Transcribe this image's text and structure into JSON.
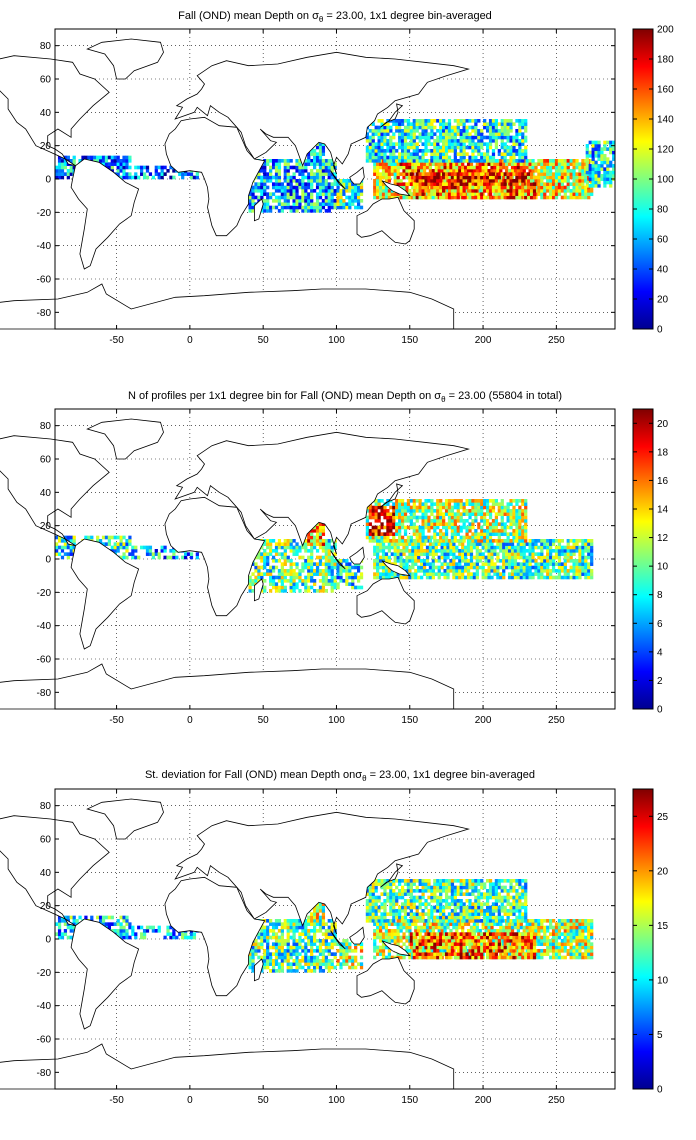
{
  "chart_data": [
    {
      "type": "heatmap",
      "title_parts": {
        "pre": "Fall (OND) mean Depth on ",
        "sym": "σ",
        "sub": "θ",
        "post": " = 23.00, 1x1 degree bin-averaged"
      },
      "x_ticks": [
        "-50",
        "0",
        "50",
        "100",
        "150",
        "200",
        "250"
      ],
      "y_ticks": [
        "80",
        "60",
        "40",
        "20",
        "0",
        "-20",
        "-40",
        "-60",
        "-80"
      ],
      "xlim": [
        -92,
        290
      ],
      "ylim": [
        -90,
        90
      ],
      "colorbar": {
        "range": [
          0,
          200
        ],
        "ticks": [
          "200",
          "180",
          "160",
          "140",
          "120",
          "100",
          "80",
          "60",
          "40",
          "20",
          "0"
        ]
      },
      "grid": true
    },
    {
      "type": "heatmap",
      "title_parts": {
        "pre": "N of profiles per 1x1 degree bin for Fall (OND) mean Depth on ",
        "sym": "σ",
        "sub": "θ",
        "post": " = 23.00 (55804 in total)"
      },
      "x_ticks": [
        "-50",
        "0",
        "50",
        "100",
        "150",
        "200",
        "250"
      ],
      "y_ticks": [
        "80",
        "60",
        "40",
        "20",
        "0",
        "-20",
        "-40",
        "-60",
        "-80"
      ],
      "xlim": [
        -92,
        290
      ],
      "ylim": [
        -90,
        90
      ],
      "colorbar": {
        "range": [
          0,
          21
        ],
        "ticks": [
          "20",
          "18",
          "16",
          "14",
          "12",
          "10",
          "8",
          "6",
          "4",
          "2",
          "0"
        ]
      },
      "grid": true
    },
    {
      "type": "heatmap",
      "title_parts": {
        "pre": "St. deviation for Fall (OND) mean Depth on",
        "sym": "σ",
        "sub": "θ",
        "post": " = 23.00, 1x1 degree bin-averaged"
      },
      "x_ticks": [
        "-50",
        "0",
        "50",
        "100",
        "150",
        "200",
        "250"
      ],
      "y_ticks": [
        "80",
        "60",
        "40",
        "20",
        "0",
        "-20",
        "-40",
        "-60",
        "-80"
      ],
      "xlim": [
        -92,
        290
      ],
      "ylim": [
        -90,
        90
      ],
      "colorbar": {
        "range": [
          0,
          27.5
        ],
        "ticks": [
          "25",
          "20",
          "15",
          "10",
          "5",
          "0"
        ]
      },
      "grid": true
    }
  ]
}
